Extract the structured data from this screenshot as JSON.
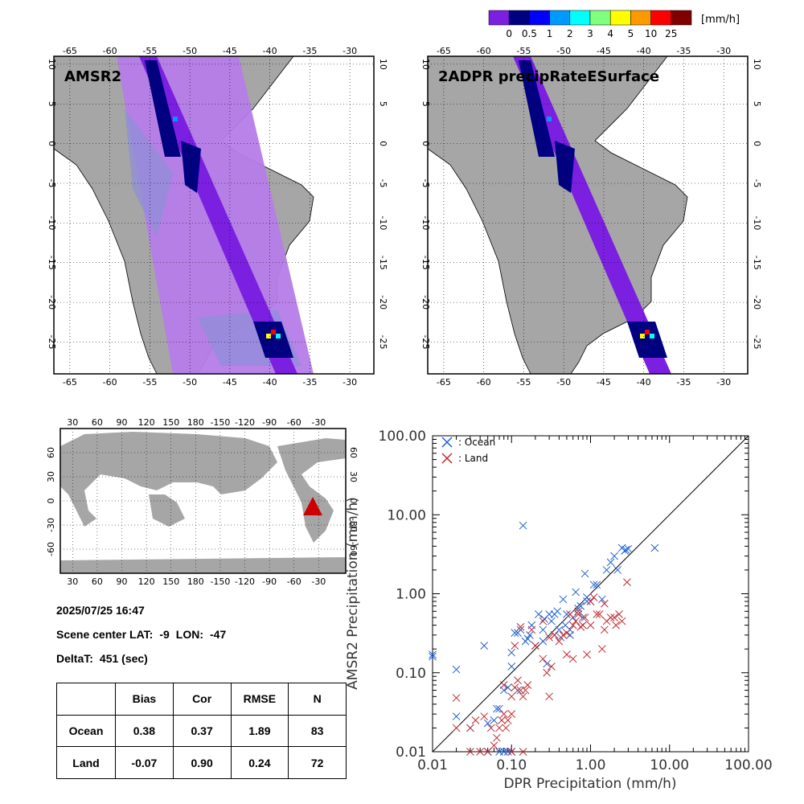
{
  "colorbar": {
    "unit": "[mm/h]",
    "colors": [
      "#7b1fe0",
      "#000080",
      "#0000ff",
      "#0099ff",
      "#00ffff",
      "#80ff80",
      "#ffff00",
      "#ff9900",
      "#ff0000",
      "#800000"
    ],
    "labels": [
      "0",
      "0.5",
      "1",
      "2",
      "3",
      "4",
      "5",
      "10",
      "25"
    ]
  },
  "map_left": {
    "title": "AMSR2",
    "lon_labels": [
      "-65",
      "-60",
      "-55",
      "-50",
      "-45",
      "-40",
      "-35",
      "-30"
    ],
    "lat_labels": [
      "10",
      "5",
      "0",
      "-5",
      "-10",
      "-15",
      "-20",
      "-25"
    ]
  },
  "map_right": {
    "title": "2ADPR precipRateESurface",
    "lon_labels": [
      "-65",
      "-60",
      "-55",
      "-50",
      "-45",
      "-40",
      "-35",
      "-30"
    ],
    "lat_labels": [
      "10",
      "5",
      "0",
      "-5",
      "-10",
      "-15",
      "-20",
      "-25"
    ]
  },
  "world_map": {
    "lon_labels": [
      "30",
      "60",
      "90",
      "120",
      "150",
      "180",
      "-150",
      "-120",
      "-90",
      "-60",
      "-30"
    ],
    "lat_labels": [
      "60",
      "30",
      "0",
      "-30",
      "-60"
    ],
    "marker_color": "#cc0000"
  },
  "info": {
    "datetime": "2025/07/25 16:47",
    "scene_label": "Scene center LAT:",
    "lat_value": "-9",
    "lon_label": "LON:",
    "lon_value": "-47",
    "delta_label": "DeltaT:",
    "delta_value": "451 (sec)"
  },
  "stats": {
    "headers": [
      "",
      "Bias",
      "Cor",
      "RMSE",
      "N"
    ],
    "rows": [
      [
        "Ocean",
        "0.38",
        "0.37",
        "1.89",
        "83"
      ],
      [
        "Land",
        "-0.07",
        "0.90",
        "0.24",
        "72"
      ]
    ]
  },
  "chart_data": {
    "type": "scatter",
    "xlabel": "DPR Precipitation (mm/h)",
    "ylabel": "AMSR2 Precipitation (mm/h)",
    "xscale": "log",
    "yscale": "log",
    "xlim": [
      0.01,
      100
    ],
    "ylim": [
      0.01,
      100
    ],
    "x_tick_labels": [
      "0.01",
      "0.10",
      "1.00",
      "10.00",
      "100.00"
    ],
    "y_tick_labels": [
      "0.01",
      "0.10",
      "1.00",
      "10.00",
      "100.00"
    ],
    "reference_line": "1:1",
    "legend_position": "top-left",
    "series": [
      {
        "name": ": Ocean",
        "color": "#1f5fd0",
        "marker": "x",
        "points": [
          [
            0.01,
            0.17
          ],
          [
            0.01,
            0.16
          ],
          [
            0.02,
            0.11
          ],
          [
            0.02,
            0.028
          ],
          [
            0.03,
            0.02
          ],
          [
            0.045,
            0.22
          ],
          [
            0.05,
            0.023
          ],
          [
            0.06,
            0.025
          ],
          [
            0.065,
            0.035
          ],
          [
            0.07,
            0.035
          ],
          [
            0.08,
            0.06
          ],
          [
            0.09,
            0.065
          ],
          [
            0.1,
            0.12
          ],
          [
            0.1,
            0.18
          ],
          [
            0.11,
            0.32
          ],
          [
            0.12,
            0.32
          ],
          [
            0.13,
            0.35
          ],
          [
            0.14,
            7.3
          ],
          [
            0.15,
            0.25
          ],
          [
            0.16,
            0.27
          ],
          [
            0.17,
            0.3
          ],
          [
            0.18,
            0.4
          ],
          [
            0.2,
            0.22
          ],
          [
            0.22,
            0.55
          ],
          [
            0.25,
            0.25
          ],
          [
            0.26,
            0.48
          ],
          [
            0.28,
            0.13
          ],
          [
            0.3,
            0.55
          ],
          [
            0.32,
            0.45
          ],
          [
            0.35,
            0.55
          ],
          [
            0.38,
            0.6
          ],
          [
            0.4,
            0.35
          ],
          [
            0.42,
            0.28
          ],
          [
            0.45,
            0.85
          ],
          [
            0.48,
            0.4
          ],
          [
            0.5,
            0.55
          ],
          [
            0.55,
            0.3
          ],
          [
            0.6,
            0.5
          ],
          [
            0.65,
            1.05
          ],
          [
            0.7,
            0.65
          ],
          [
            0.75,
            0.7
          ],
          [
            0.8,
            0.5
          ],
          [
            0.85,
            1.8
          ],
          [
            0.9,
            0.9
          ],
          [
            1.0,
            0.8
          ],
          [
            1.1,
            1.3
          ],
          [
            1.2,
            1.3
          ],
          [
            1.4,
            0.85
          ],
          [
            1.6,
            2.0
          ],
          [
            1.8,
            2.5
          ],
          [
            2.0,
            3.0
          ],
          [
            2.2,
            2.0
          ],
          [
            2.5,
            3.8
          ],
          [
            2.7,
            3.5
          ],
          [
            2.8,
            3.6
          ],
          [
            3.0,
            3.7
          ],
          [
            6.5,
            3.8
          ],
          [
            0.08,
            0.01
          ],
          [
            0.09,
            0.01
          ],
          [
            0.1,
            0.01
          ],
          [
            0.12,
            0.06
          ],
          [
            0.05,
            0.01
          ],
          [
            0.07,
            0.01
          ],
          [
            0.25,
            0.35
          ],
          [
            0.35,
            0.3
          ],
          [
            0.55,
            0.35
          ],
          [
            0.9,
            0.8
          ]
        ]
      },
      {
        "name": ": Land",
        "color": "#c0282d",
        "marker": "x",
        "points": [
          [
            0.02,
            0.048
          ],
          [
            0.02,
            0.02
          ],
          [
            0.03,
            0.02
          ],
          [
            0.03,
            0.01
          ],
          [
            0.035,
            0.025
          ],
          [
            0.04,
            0.01
          ],
          [
            0.045,
            0.028
          ],
          [
            0.05,
            0.01
          ],
          [
            0.055,
            0.02
          ],
          [
            0.06,
            0.012
          ],
          [
            0.065,
            0.015
          ],
          [
            0.07,
            0.02
          ],
          [
            0.075,
            0.025
          ],
          [
            0.08,
            0.03
          ],
          [
            0.085,
            0.02
          ],
          [
            0.09,
            0.025
          ],
          [
            0.1,
            0.03
          ],
          [
            0.1,
            0.05
          ],
          [
            0.11,
            0.065
          ],
          [
            0.12,
            0.08
          ],
          [
            0.13,
            0.06
          ],
          [
            0.14,
            0.05
          ],
          [
            0.14,
            0.01
          ],
          [
            0.15,
            0.06
          ],
          [
            0.16,
            0.07
          ],
          [
            0.11,
            0.22
          ],
          [
            0.13,
            0.38
          ],
          [
            0.2,
            0.22
          ],
          [
            0.25,
            0.15
          ],
          [
            0.28,
            0.1
          ],
          [
            0.3,
            0.28
          ],
          [
            0.32,
            0.12
          ],
          [
            0.35,
            0.3
          ],
          [
            0.4,
            0.25
          ],
          [
            0.45,
            0.3
          ],
          [
            0.5,
            0.32
          ],
          [
            0.5,
            0.17
          ],
          [
            0.55,
            0.55
          ],
          [
            0.6,
            0.4
          ],
          [
            0.65,
            0.45
          ],
          [
            0.7,
            0.55
          ],
          [
            0.75,
            0.38
          ],
          [
            0.8,
            0.4
          ],
          [
            0.85,
            0.5
          ],
          [
            1.0,
            0.4
          ],
          [
            1.0,
            0.8
          ],
          [
            1.1,
            0.9
          ],
          [
            1.2,
            0.55
          ],
          [
            1.3,
            0.55
          ],
          [
            1.5,
            0.75
          ],
          [
            1.5,
            0.35
          ],
          [
            1.6,
            0.45
          ],
          [
            1.8,
            0.5
          ],
          [
            2.0,
            0.5
          ],
          [
            2.1,
            0.4
          ],
          [
            2.3,
            0.55
          ],
          [
            2.5,
            0.45
          ],
          [
            1.4,
            0.2
          ],
          [
            0.9,
            0.17
          ],
          [
            2.9,
            1.4
          ],
          [
            0.6,
            0.15
          ],
          [
            0.7,
            0.6
          ],
          [
            0.3,
            0.05
          ],
          [
            0.18,
            0.35
          ],
          [
            0.1,
            0.01
          ],
          [
            0.25,
            0.45
          ],
          [
            0.08,
            0.07
          ]
        ]
      }
    ]
  }
}
